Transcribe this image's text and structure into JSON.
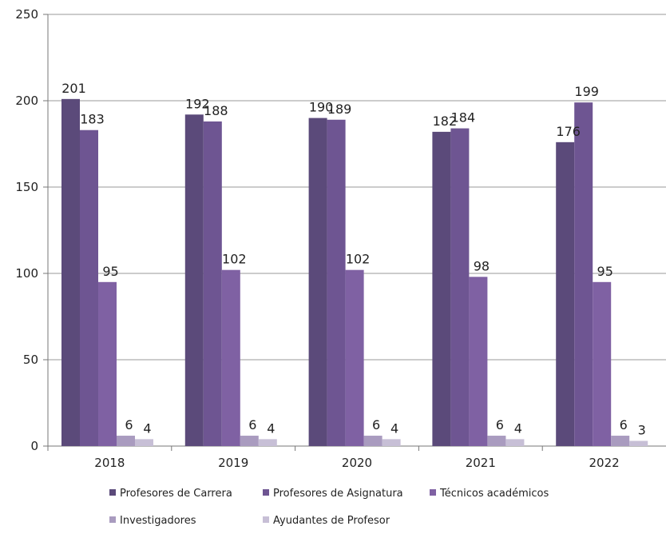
{
  "chart_data": {
    "type": "bar",
    "title": "",
    "xlabel": "",
    "ylabel": "",
    "ylim": [
      0,
      250
    ],
    "yticks": [
      0,
      50,
      100,
      150,
      200,
      250
    ],
    "grid": "horizontal",
    "legend_position": "bottom",
    "categories": [
      "2018",
      "2019",
      "2020",
      "2021",
      "2022"
    ],
    "series": [
      {
        "name": "Profesores de Carrera",
        "color": "#5b4a7a",
        "values": [
          201,
          192,
          190,
          182,
          176
        ]
      },
      {
        "name": "Profesores de Asignatura",
        "color": "#6e5592",
        "values": [
          183,
          188,
          189,
          184,
          199
        ]
      },
      {
        "name": "Técnicos académicos",
        "color": "#7f61a3",
        "values": [
          95,
          102,
          102,
          98,
          95
        ]
      },
      {
        "name": "Investigadores",
        "color": "#a99bbf",
        "values": [
          6,
          6,
          6,
          6,
          6
        ]
      },
      {
        "name": "Ayudantes de Profesor",
        "color": "#c7bfd6",
        "values": [
          4,
          4,
          4,
          4,
          3
        ]
      }
    ]
  }
}
